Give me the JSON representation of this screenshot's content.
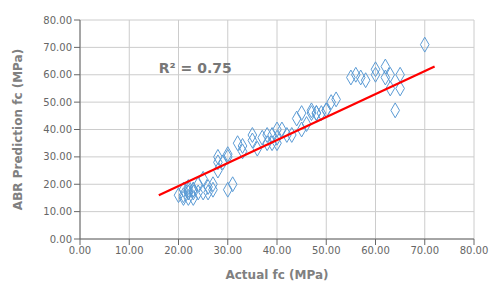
{
  "chart_data": {
    "type": "scatter",
    "title": "",
    "xlabel": "Actual fc (MPa)",
    "ylabel": "ABR Prediction fc (MPa)",
    "annotation": "R² = 0.75",
    "xlim": [
      0,
      80
    ],
    "ylim": [
      0,
      80
    ],
    "xticks": [
      {
        "value": 0,
        "label": "0.00"
      },
      {
        "value": 10,
        "label": "10.00"
      },
      {
        "value": 20,
        "label": "20.00"
      },
      {
        "value": 30,
        "label": "30.00"
      },
      {
        "value": 40,
        "label": "40.00"
      },
      {
        "value": 50,
        "label": "50.00"
      },
      {
        "value": 60,
        "label": "60.00"
      },
      {
        "value": 70,
        "label": "70.00"
      },
      {
        "value": 80,
        "label": "80.00"
      }
    ],
    "yticks": [
      {
        "value": 0,
        "label": "0.00"
      },
      {
        "value": 10,
        "label": "10.00"
      },
      {
        "value": 20,
        "label": "20.00"
      },
      {
        "value": 30,
        "label": "30.00"
      },
      {
        "value": 40,
        "label": "40.00"
      },
      {
        "value": 50,
        "label": "50.00"
      },
      {
        "value": 60,
        "label": "60.00"
      },
      {
        "value": 70,
        "label": "70.00"
      },
      {
        "value": 80,
        "label": "80.00"
      }
    ],
    "grid": true,
    "series": [
      {
        "type": "scatter",
        "color": "#5B9BD5",
        "marker": "diamond",
        "x": [
          20,
          21,
          21,
          21,
          22,
          22,
          22,
          22,
          22,
          23,
          23,
          23,
          23,
          24,
          24,
          25,
          25,
          26,
          26,
          27,
          27,
          28,
          28,
          28,
          29,
          30,
          30,
          30,
          31,
          32,
          33,
          33,
          35,
          35,
          36,
          37,
          38,
          38,
          39,
          39,
          40,
          40,
          40,
          41,
          42,
          43,
          44,
          45,
          45,
          46,
          47,
          47,
          48,
          48,
          49,
          50,
          50,
          51,
          52,
          55,
          56,
          57,
          58,
          60,
          60,
          62,
          62,
          63,
          63,
          64,
          65,
          65,
          70
        ],
        "values": [
          16,
          15,
          16,
          18,
          15,
          17,
          17,
          18,
          19,
          15,
          17,
          18,
          18,
          17,
          20,
          17,
          22,
          17,
          19,
          18,
          20,
          25,
          28,
          30,
          28,
          18,
          30,
          31,
          20,
          35,
          32,
          34,
          36,
          38,
          33,
          37,
          35,
          38,
          35,
          38,
          35,
          37,
          40,
          40,
          38,
          38,
          44,
          40,
          46,
          42,
          46,
          47,
          46,
          46,
          46,
          47,
          47,
          50,
          51,
          59,
          60,
          59,
          58,
          60,
          62,
          59,
          63,
          55,
          60,
          47,
          55,
          60,
          71
        ]
      },
      {
        "type": "line",
        "color": "#FF0000",
        "x": [
          16,
          72
        ],
        "values": [
          16,
          63
        ]
      }
    ]
  }
}
